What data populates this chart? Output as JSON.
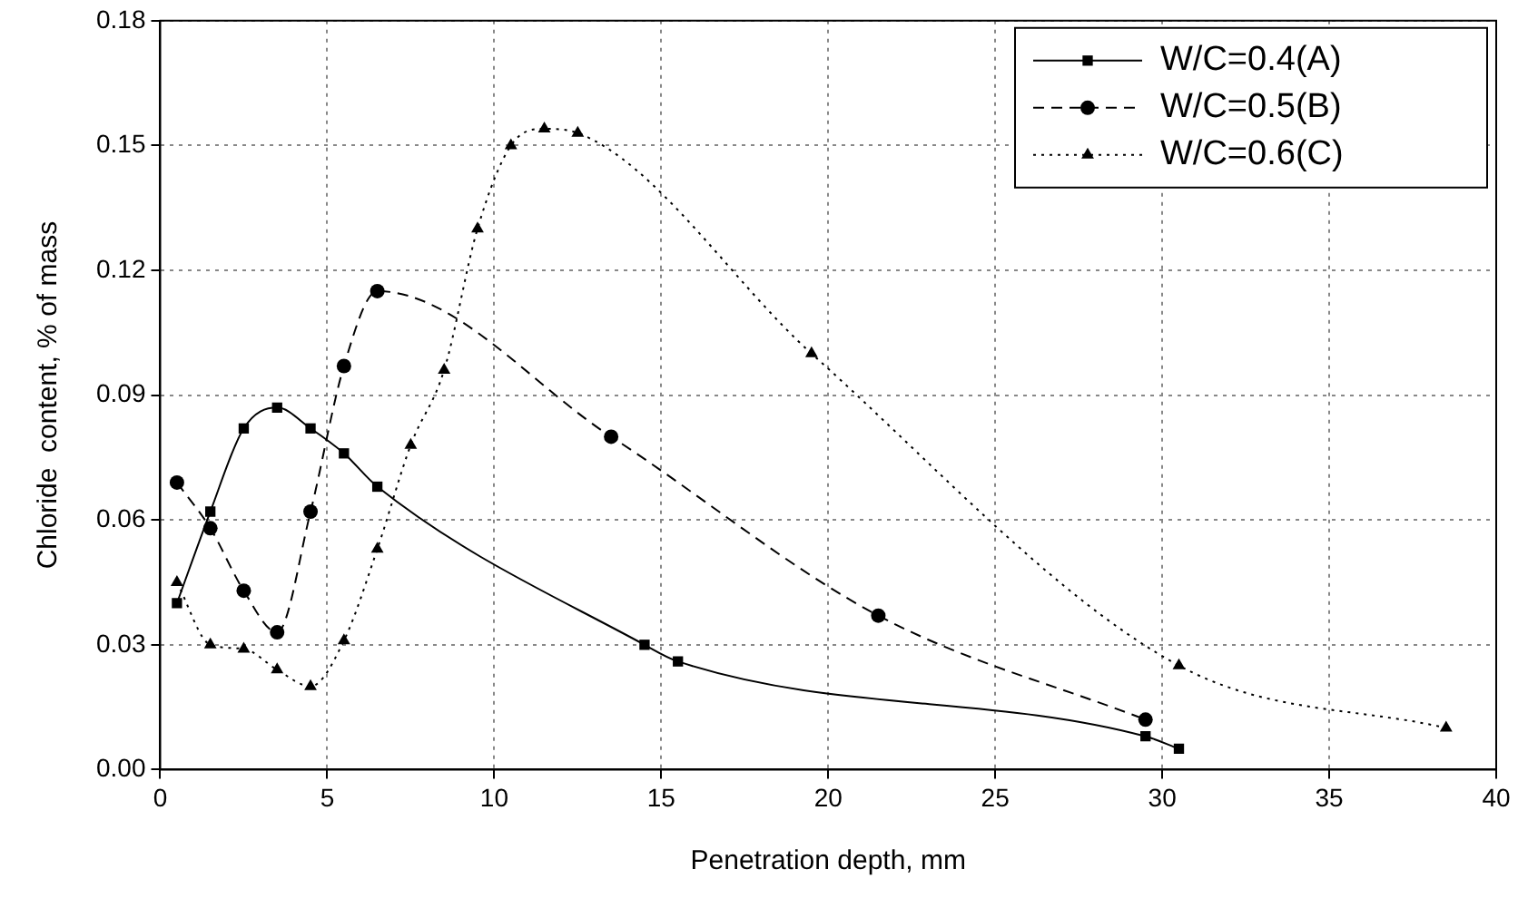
{
  "chart_data": {
    "type": "line",
    "xlabel": "Penetration depth, mm",
    "ylabel": "Chloride  content, % of mass",
    "xlim": [
      0,
      40
    ],
    "xticks": [
      0,
      5,
      10,
      15,
      20,
      25,
      30,
      35,
      40
    ],
    "ylim": [
      0,
      0.18
    ],
    "yticks": [
      {
        "value": 0,
        "label": "0.00"
      },
      {
        "value": 0.03,
        "label": "0.03"
      },
      {
        "value": 0.06,
        "label": "0.06"
      },
      {
        "value": 0.09,
        "label": "0.09"
      },
      {
        "value": 0.12,
        "label": "0.12"
      },
      {
        "value": 0.15,
        "label": "0.15"
      },
      {
        "value": 0.18,
        "label": "0.18"
      }
    ],
    "grid": true,
    "legend": "top right",
    "series": [
      {
        "name": "W/C=0.4(A)",
        "color": "#000000",
        "marker": "square",
        "line_style": "solid",
        "x": [
          0.5,
          1.5,
          2.5,
          3.5,
          4.5,
          5.5,
          6.5,
          14.5,
          15.5,
          29.5,
          30.5
        ],
        "values": [
          0.04,
          0.062,
          0.082,
          0.087,
          0.082,
          0.076,
          0.068,
          0.03,
          0.026,
          0.008,
          0.005
        ]
      },
      {
        "name": "W/C=0.5(B)",
        "color": "#000000",
        "marker": "circle",
        "line_style": "dashed",
        "x": [
          0.5,
          1.5,
          2.5,
          3.5,
          4.5,
          5.5,
          6.5,
          13.5,
          21.5,
          29.5
        ],
        "values": [
          0.069,
          0.058,
          0.043,
          0.033,
          0.062,
          0.097,
          0.115,
          0.08,
          0.037,
          0.012
        ]
      },
      {
        "name": "W/C=0.6(C)",
        "color": "#000000",
        "marker": "triangle",
        "line_style": "dotted",
        "x": [
          0.5,
          1.5,
          2.5,
          3.5,
          4.5,
          5.5,
          6.5,
          7.5,
          8.5,
          9.5,
          10.5,
          11.5,
          12.5,
          19.5,
          30.5,
          38.5
        ],
        "values": [
          0.045,
          0.03,
          0.029,
          0.024,
          0.02,
          0.031,
          0.053,
          0.078,
          0.096,
          0.13,
          0.15,
          0.154,
          0.153,
          0.1,
          0.025,
          0.01
        ]
      }
    ]
  }
}
